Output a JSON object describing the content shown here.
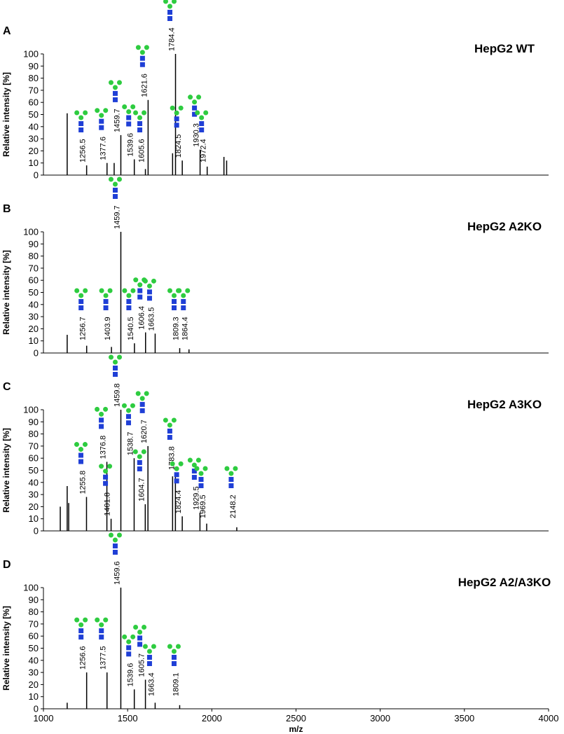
{
  "chart_data": [
    {
      "type": "spectrum",
      "panel_label": "A",
      "title": "HepG2 WT",
      "ylabel": "Relative intensity [%]",
      "color": "#000000",
      "xlim": [
        1000,
        4000
      ],
      "ylim": [
        0,
        100
      ],
      "yticks": [
        0,
        10,
        20,
        30,
        40,
        50,
        60,
        70,
        80,
        90,
        100
      ],
      "x": [
        1256.5,
        1377.6,
        1459.7,
        1539.6,
        1605.6,
        1621.6,
        1784.4,
        1824.5,
        1930.3,
        1972.4
      ],
      "values": [
        8,
        10,
        33,
        13,
        5,
        62,
        100,
        12,
        21,
        7
      ],
      "other_peaks": {
        "x": [
          1141,
          1420,
          1767,
          2072,
          2088
        ],
        "values": [
          51,
          10,
          18,
          15,
          12
        ]
      }
    },
    {
      "type": "spectrum",
      "panel_label": "B",
      "title": "HepG2 A2KO",
      "ylabel": "Relative intensity [%]",
      "color": "#000000",
      "xlim": [
        1000,
        4000
      ],
      "ylim": [
        0,
        100
      ],
      "yticks": [
        0,
        10,
        20,
        30,
        40,
        50,
        60,
        70,
        80,
        90,
        100
      ],
      "x": [
        1256.7,
        1403.9,
        1459.7,
        1540.5,
        1606.4,
        1663.5,
        1809.3,
        1864.4
      ],
      "values": [
        6,
        5,
        100,
        8,
        17,
        16,
        4,
        3
      ],
      "other_peaks": {
        "x": [
          1141
        ],
        "values": [
          15
        ]
      }
    },
    {
      "type": "spectrum",
      "panel_label": "C",
      "title": "HepG2 A3KO",
      "ylabel": "Relative intensity [%]",
      "color": "#000000",
      "xlim": [
        1000,
        4000
      ],
      "ylim": [
        0,
        100
      ],
      "yticks": [
        0,
        10,
        20,
        30,
        40,
        50,
        60,
        70,
        80,
        90,
        100
      ],
      "x": [
        1255.8,
        1376.8,
        1401.8,
        1459.8,
        1538.7,
        1604.7,
        1620.7,
        1783.8,
        1824.4,
        1929.5,
        1969.5,
        2148.2
      ],
      "values": [
        28,
        57,
        10,
        100,
        60,
        22,
        70,
        48,
        12,
        15,
        6,
        3
      ],
      "other_peaks": {
        "x": [
          1100,
          1141,
          1150,
          1767
        ],
        "values": [
          20,
          37,
          23,
          45
        ]
      }
    },
    {
      "type": "spectrum",
      "panel_label": "D",
      "title": "HepG2 A2/A3KO",
      "ylabel": "Relative intensity [%]",
      "xlabel": "m/z",
      "color": "#000000",
      "xlim": [
        1000,
        4000
      ],
      "ylim": [
        0,
        100
      ],
      "yticks": [
        0,
        10,
        20,
        30,
        40,
        50,
        60,
        70,
        80,
        90,
        100
      ],
      "xticks": [
        1000,
        1500,
        2000,
        2500,
        3000,
        3500,
        4000
      ],
      "x": [
        1256.6,
        1377.5,
        1459.6,
        1539.6,
        1605.7,
        1663.4,
        1809.1
      ],
      "values": [
        30,
        30,
        100,
        16,
        24,
        5,
        3
      ],
      "other_peaks": {
        "x": [
          1141
        ],
        "values": [
          5
        ]
      }
    }
  ]
}
